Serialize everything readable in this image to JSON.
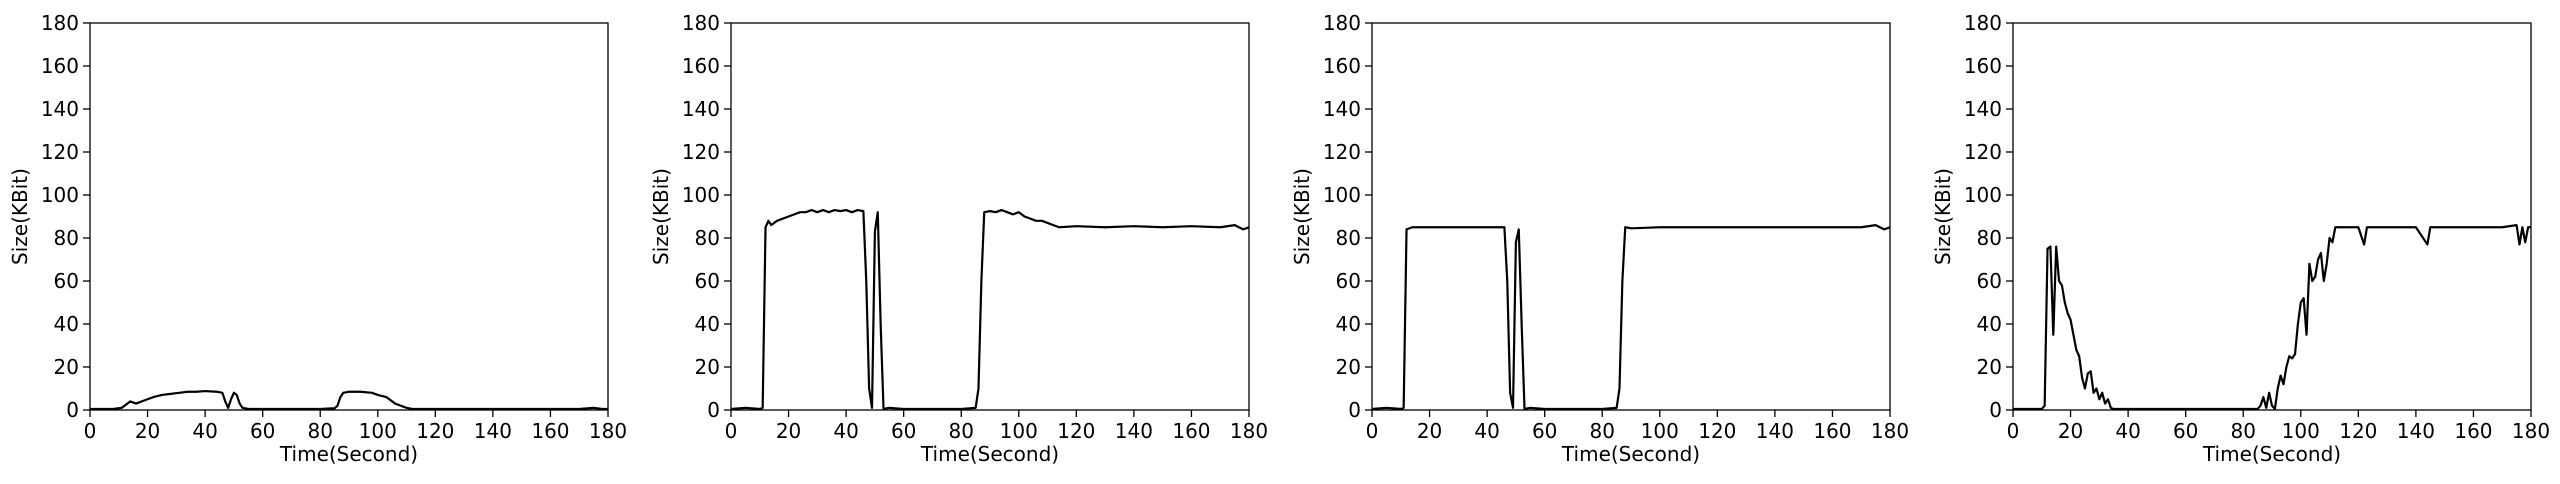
{
  "chart_data": [
    {
      "type": "line",
      "xlabel": "Time(Second)",
      "ylabel": "Size(KBit)",
      "xlim": [
        0,
        180
      ],
      "ylim": [
        0,
        180
      ],
      "xticks": [
        0,
        20,
        40,
        60,
        80,
        100,
        120,
        140,
        160,
        180
      ],
      "yticks": [
        0,
        20,
        40,
        60,
        80,
        100,
        120,
        140,
        160,
        180
      ],
      "grid": false,
      "series": [
        {
          "color": "#000000",
          "points": [
            [
              0,
              0.5
            ],
            [
              8,
              0.5
            ],
            [
              11,
              1
            ],
            [
              12,
              2
            ],
            [
              14,
              4
            ],
            [
              16,
              3
            ],
            [
              18,
              4
            ],
            [
              20,
              5
            ],
            [
              22,
              6
            ],
            [
              25,
              7
            ],
            [
              28,
              7.5
            ],
            [
              31,
              8
            ],
            [
              34,
              8.5
            ],
            [
              37,
              8.5
            ],
            [
              40,
              8.8
            ],
            [
              44,
              8.5
            ],
            [
              46,
              8
            ],
            [
              47,
              4
            ],
            [
              48,
              1
            ],
            [
              49,
              5
            ],
            [
              50,
              8
            ],
            [
              51,
              7
            ],
            [
              52,
              3
            ],
            [
              53,
              1
            ],
            [
              55,
              0.5
            ],
            [
              60,
              0.5
            ],
            [
              70,
              0.5
            ],
            [
              80,
              0.5
            ],
            [
              85,
              0.8
            ],
            [
              86,
              2
            ],
            [
              87,
              6
            ],
            [
              88,
              8
            ],
            [
              90,
              8.5
            ],
            [
              94,
              8.5
            ],
            [
              98,
              8
            ],
            [
              100,
              7
            ],
            [
              103,
              6
            ],
            [
              106,
              3
            ],
            [
              108,
              2
            ],
            [
              110,
              1
            ],
            [
              112,
              0.5
            ],
            [
              120,
              0.5
            ],
            [
              130,
              0.5
            ],
            [
              140,
              0.5
            ],
            [
              150,
              0.5
            ],
            [
              160,
              0.5
            ],
            [
              170,
              0.5
            ],
            [
              175,
              1
            ],
            [
              178,
              0.5
            ],
            [
              180,
              0.5
            ]
          ]
        }
      ]
    },
    {
      "type": "line",
      "xlabel": "Time(Second)",
      "ylabel": "Size(KBit)",
      "xlim": [
        0,
        180
      ],
      "ylim": [
        0,
        180
      ],
      "xticks": [
        0,
        20,
        40,
        60,
        80,
        100,
        120,
        140,
        160,
        180
      ],
      "yticks": [
        0,
        20,
        40,
        60,
        80,
        100,
        120,
        140,
        160,
        180
      ],
      "grid": false,
      "series": [
        {
          "color": "#000000",
          "points": [
            [
              0,
              0.5
            ],
            [
              5,
              1
            ],
            [
              10,
              0.5
            ],
            [
              11,
              1
            ],
            [
              12,
              85
            ],
            [
              13,
              88
            ],
            [
              14,
              86
            ],
            [
              16,
              88
            ],
            [
              18,
              89
            ],
            [
              20,
              90
            ],
            [
              22,
              91
            ],
            [
              24,
              92
            ],
            [
              26,
              92
            ],
            [
              28,
              93
            ],
            [
              30,
              92
            ],
            [
              32,
              93
            ],
            [
              34,
              92
            ],
            [
              36,
              93
            ],
            [
              38,
              92.5
            ],
            [
              40,
              93
            ],
            [
              42,
              92
            ],
            [
              44,
              93
            ],
            [
              46,
              92.5
            ],
            [
              47,
              60
            ],
            [
              48,
              10
            ],
            [
              49,
              1
            ],
            [
              50,
              83
            ],
            [
              51,
              92
            ],
            [
              52,
              40
            ],
            [
              53,
              0.5
            ],
            [
              55,
              1
            ],
            [
              60,
              0.5
            ],
            [
              70,
              0.5
            ],
            [
              80,
              0.5
            ],
            [
              85,
              1
            ],
            [
              86,
              10
            ],
            [
              87,
              60
            ],
            [
              88,
              92
            ],
            [
              90,
              92.5
            ],
            [
              92,
              92
            ],
            [
              94,
              93
            ],
            [
              96,
              92
            ],
            [
              98,
              91
            ],
            [
              100,
              92
            ],
            [
              102,
              90
            ],
            [
              104,
              89
            ],
            [
              106,
              88
            ],
            [
              108,
              88
            ],
            [
              110,
              87
            ],
            [
              112,
              86
            ],
            [
              114,
              85
            ],
            [
              120,
              85.5
            ],
            [
              130,
              85
            ],
            [
              140,
              85.5
            ],
            [
              150,
              85
            ],
            [
              160,
              85.5
            ],
            [
              170,
              85
            ],
            [
              175,
              86
            ],
            [
              178,
              84
            ],
            [
              180,
              85
            ]
          ]
        }
      ]
    },
    {
      "type": "line",
      "xlabel": "Time(Second)",
      "ylabel": "Size(KBit)",
      "xlim": [
        0,
        180
      ],
      "ylim": [
        0,
        180
      ],
      "xticks": [
        0,
        20,
        40,
        60,
        80,
        100,
        120,
        140,
        160,
        180
      ],
      "yticks": [
        0,
        20,
        40,
        60,
        80,
        100,
        120,
        140,
        160,
        180
      ],
      "grid": false,
      "series": [
        {
          "color": "#000000",
          "points": [
            [
              0,
              0.5
            ],
            [
              5,
              1
            ],
            [
              10,
              0.5
            ],
            [
              11,
              1
            ],
            [
              12,
              84
            ],
            [
              14,
              85
            ],
            [
              18,
              85
            ],
            [
              22,
              85
            ],
            [
              26,
              85
            ],
            [
              30,
              85
            ],
            [
              34,
              85
            ],
            [
              38,
              85
            ],
            [
              42,
              85
            ],
            [
              46,
              85
            ],
            [
              47,
              60
            ],
            [
              48,
              8
            ],
            [
              49,
              1
            ],
            [
              50,
              78
            ],
            [
              51,
              84
            ],
            [
              52,
              40
            ],
            [
              53,
              0.5
            ],
            [
              55,
              1
            ],
            [
              60,
              0.5
            ],
            [
              70,
              0.5
            ],
            [
              80,
              0.5
            ],
            [
              85,
              1
            ],
            [
              86,
              10
            ],
            [
              87,
              60
            ],
            [
              88,
              85
            ],
            [
              90,
              84.5
            ],
            [
              100,
              85
            ],
            [
              110,
              85
            ],
            [
              120,
              85
            ],
            [
              130,
              85
            ],
            [
              140,
              85
            ],
            [
              150,
              85
            ],
            [
              160,
              85
            ],
            [
              170,
              85
            ],
            [
              175,
              86
            ],
            [
              178,
              84
            ],
            [
              180,
              85
            ]
          ]
        }
      ]
    },
    {
      "type": "line",
      "xlabel": "Time(Second)",
      "ylabel": "Size(KBit)",
      "xlim": [
        0,
        180
      ],
      "ylim": [
        0,
        180
      ],
      "xticks": [
        0,
        20,
        40,
        60,
        80,
        100,
        120,
        140,
        160,
        180
      ],
      "yticks": [
        0,
        20,
        40,
        60,
        80,
        100,
        120,
        140,
        160,
        180
      ],
      "grid": false,
      "series": [
        {
          "color": "#000000",
          "points": [
            [
              0,
              0.5
            ],
            [
              5,
              0.5
            ],
            [
              10,
              0.5
            ],
            [
              11,
              2
            ],
            [
              12,
              75
            ],
            [
              13,
              76
            ],
            [
              14,
              35
            ],
            [
              15,
              76
            ],
            [
              16,
              60
            ],
            [
              17,
              58
            ],
            [
              18,
              50
            ],
            [
              19,
              45
            ],
            [
              20,
              42
            ],
            [
              21,
              35
            ],
            [
              22,
              28
            ],
            [
              23,
              25
            ],
            [
              24,
              15
            ],
            [
              25,
              10
            ],
            [
              26,
              17
            ],
            [
              27,
              18
            ],
            [
              28,
              8
            ],
            [
              29,
              10
            ],
            [
              30,
              5
            ],
            [
              31,
              8
            ],
            [
              32,
              3
            ],
            [
              33,
              5
            ],
            [
              34,
              1
            ],
            [
              35,
              0.5
            ],
            [
              40,
              0.5
            ],
            [
              50,
              0.5
            ],
            [
              60,
              0.5
            ],
            [
              70,
              0.5
            ],
            [
              80,
              0.5
            ],
            [
              85,
              0.5
            ],
            [
              86,
              2
            ],
            [
              87,
              6
            ],
            [
              88,
              1
            ],
            [
              89,
              8
            ],
            [
              90,
              2
            ],
            [
              91,
              0.5
            ],
            [
              92,
              10
            ],
            [
              93,
              16
            ],
            [
              94,
              12
            ],
            [
              95,
              20
            ],
            [
              96,
              25
            ],
            [
              97,
              24
            ],
            [
              98,
              26
            ],
            [
              99,
              40
            ],
            [
              100,
              50
            ],
            [
              101,
              52
            ],
            [
              102,
              35
            ],
            [
              103,
              68
            ],
            [
              104,
              60
            ],
            [
              105,
              62
            ],
            [
              106,
              70
            ],
            [
              107,
              73
            ],
            [
              108,
              60
            ],
            [
              109,
              68
            ],
            [
              110,
              80
            ],
            [
              111,
              78
            ],
            [
              112,
              85
            ],
            [
              115,
              85
            ],
            [
              120,
              85
            ],
            [
              122,
              77
            ],
            [
              123,
              85
            ],
            [
              130,
              85
            ],
            [
              140,
              85
            ],
            [
              144,
              77
            ],
            [
              145,
              85
            ],
            [
              150,
              85
            ],
            [
              160,
              85
            ],
            [
              170,
              85
            ],
            [
              175,
              86
            ],
            [
              176,
              77
            ],
            [
              177,
              85
            ],
            [
              178,
              78
            ],
            [
              179,
              85
            ],
            [
              180,
              85
            ]
          ]
        }
      ]
    }
  ]
}
